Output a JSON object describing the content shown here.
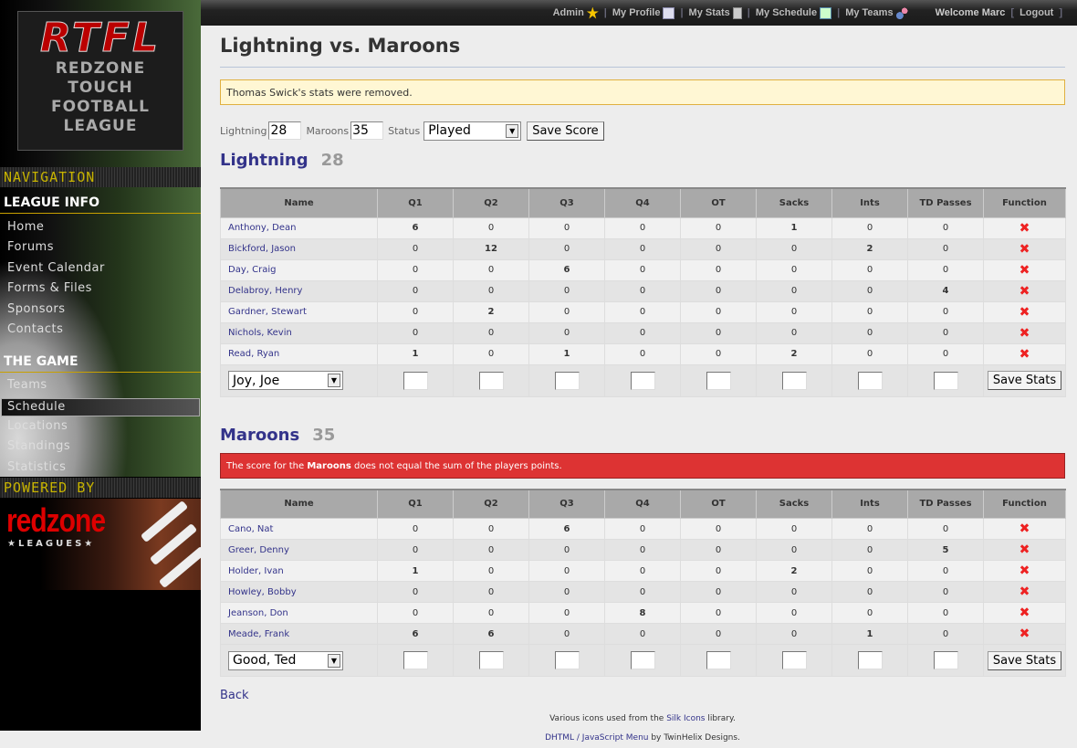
{
  "logo": {
    "main": "RTFL",
    "sub": [
      "REDZONE",
      "TOUCH",
      "FOOTBALL",
      "LEAGUE"
    ]
  },
  "sidebar": {
    "navigation_label": "NAVIGATION",
    "league_info": {
      "title": "LEAGUE INFO",
      "items": [
        "Home",
        "Forums",
        "Event Calendar",
        "Forms & Files",
        "Sponsors",
        "Contacts"
      ]
    },
    "the_game": {
      "title": "THE GAME",
      "items": [
        "Teams",
        "Schedule",
        "Locations",
        "Standings",
        "Statistics"
      ],
      "active": "Schedule"
    },
    "powered_label": "POWERED BY",
    "powered_logo": "redzone",
    "powered_sub": "★LEAGUES★"
  },
  "topbar": {
    "admin": "Admin",
    "profile": "My Profile",
    "stats": "My Stats",
    "schedule": "My Schedule",
    "teams": "My Teams",
    "welcome": "Welcome Marc",
    "logout": "Logout"
  },
  "page": {
    "title": "Lightning vs. Maroons",
    "notice": "Thomas Swick's stats were removed."
  },
  "score_form": {
    "team1_label": "Lightning",
    "team1_score": "28",
    "team2_label": "Maroons",
    "team2_score": "35",
    "status_label": "Status",
    "status_value": "Played",
    "save_label": "Save Score"
  },
  "columns": [
    "Name",
    "Q1",
    "Q2",
    "Q3",
    "Q4",
    "OT",
    "Sacks",
    "Ints",
    "TD Passes",
    "Function"
  ],
  "teams": [
    {
      "name": "Lightning",
      "score": "28",
      "error": null,
      "rows": [
        [
          "Anthony, Dean",
          6,
          0,
          0,
          0,
          0,
          1,
          0,
          0
        ],
        [
          "Bickford, Jason",
          0,
          12,
          0,
          0,
          0,
          0,
          2,
          0
        ],
        [
          "Day, Craig",
          0,
          0,
          6,
          0,
          0,
          0,
          0,
          0
        ],
        [
          "Delabroy, Henry",
          0,
          0,
          0,
          0,
          0,
          0,
          0,
          4
        ],
        [
          "Gardner, Stewart",
          0,
          2,
          0,
          0,
          0,
          0,
          0,
          0
        ],
        [
          "Nichols, Kevin",
          0,
          0,
          0,
          0,
          0,
          0,
          0,
          0
        ],
        [
          "Read, Ryan",
          1,
          0,
          1,
          0,
          0,
          2,
          0,
          0
        ]
      ],
      "add_player": "Joy, Joe"
    },
    {
      "name": "Maroons",
      "score": "35",
      "error": {
        "pre": "The score for the ",
        "bold": "Maroons",
        "post": " does not equal the sum of the players points."
      },
      "rows": [
        [
          "Cano, Nat",
          0,
          0,
          6,
          0,
          0,
          0,
          0,
          0
        ],
        [
          "Greer, Denny",
          0,
          0,
          0,
          0,
          0,
          0,
          0,
          5
        ],
        [
          "Holder, Ivan",
          1,
          0,
          0,
          0,
          0,
          2,
          0,
          0
        ],
        [
          "Howley, Bobby",
          0,
          0,
          0,
          0,
          0,
          0,
          0,
          0
        ],
        [
          "Jeanson, Don",
          0,
          0,
          0,
          8,
          0,
          0,
          0,
          0
        ],
        [
          "Meade, Frank",
          6,
          6,
          0,
          0,
          0,
          0,
          1,
          0
        ]
      ],
      "add_player": "Good, Ted"
    }
  ],
  "save_stats_label": "Save Stats",
  "back_label": "Back",
  "footer": {
    "line1_pre": "Various icons used from the ",
    "line1_link": "Silk Icons",
    "line1_post": " library.",
    "line2_link": "DHTML / JavaScript Menu",
    "line2_post": " by TwinHelix Designs."
  }
}
